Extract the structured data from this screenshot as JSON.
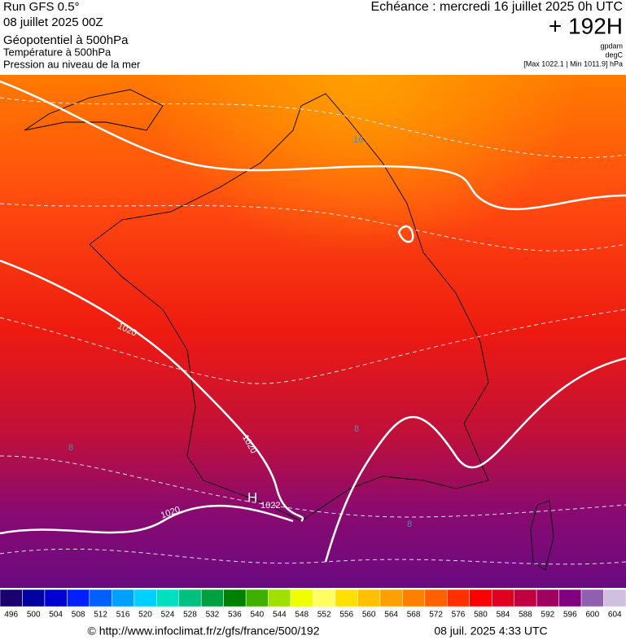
{
  "header": {
    "run": "Run GFS 0.5°",
    "date": "08 juillet 2025 00Z",
    "layers": [
      "Géopotentiel à 500hPa",
      "Température à 500hPa",
      "Pression au niveau de la mer"
    ],
    "echeance": "Echéance : mercredi 16 juillet 2025 0h UTC",
    "offset": "+ 192H",
    "units": [
      "gpdam",
      "degC"
    ],
    "range": "[Max 1022.1 | Min 1011.9] hPa"
  },
  "map": {
    "labels": [
      "1020",
      "1020",
      "1020",
      "H",
      "1022",
      "8",
      "8",
      "8",
      "16"
    ]
  },
  "scale": {
    "ticks": [
      496,
      500,
      504,
      508,
      512,
      516,
      520,
      524,
      528,
      532,
      536,
      540,
      544,
      548,
      552,
      556,
      560,
      564,
      568,
      572,
      576,
      580,
      584,
      588,
      592,
      596,
      600,
      604
    ],
    "colors": [
      "#1a006e",
      "#0000a0",
      "#0000d0",
      "#0020ff",
      "#0060ff",
      "#00a0ff",
      "#00d0ff",
      "#00e0c0",
      "#00c080",
      "#00a040",
      "#008000",
      "#40b000",
      "#a0e000",
      "#f0ff00",
      "#ffff60",
      "#ffe000",
      "#ffc000",
      "#ffa000",
      "#ff8000",
      "#ff6000",
      "#ff3000",
      "#ff0000",
      "#e00020",
      "#c00040",
      "#a00060",
      "#800080",
      "#9060b0",
      "#d0c0e0"
    ]
  },
  "footer": {
    "url": "© http://www.infoclimat.fr/z/gfs/france/500/192",
    "timestamp": "08 juil. 2025  4:33 UTC"
  }
}
